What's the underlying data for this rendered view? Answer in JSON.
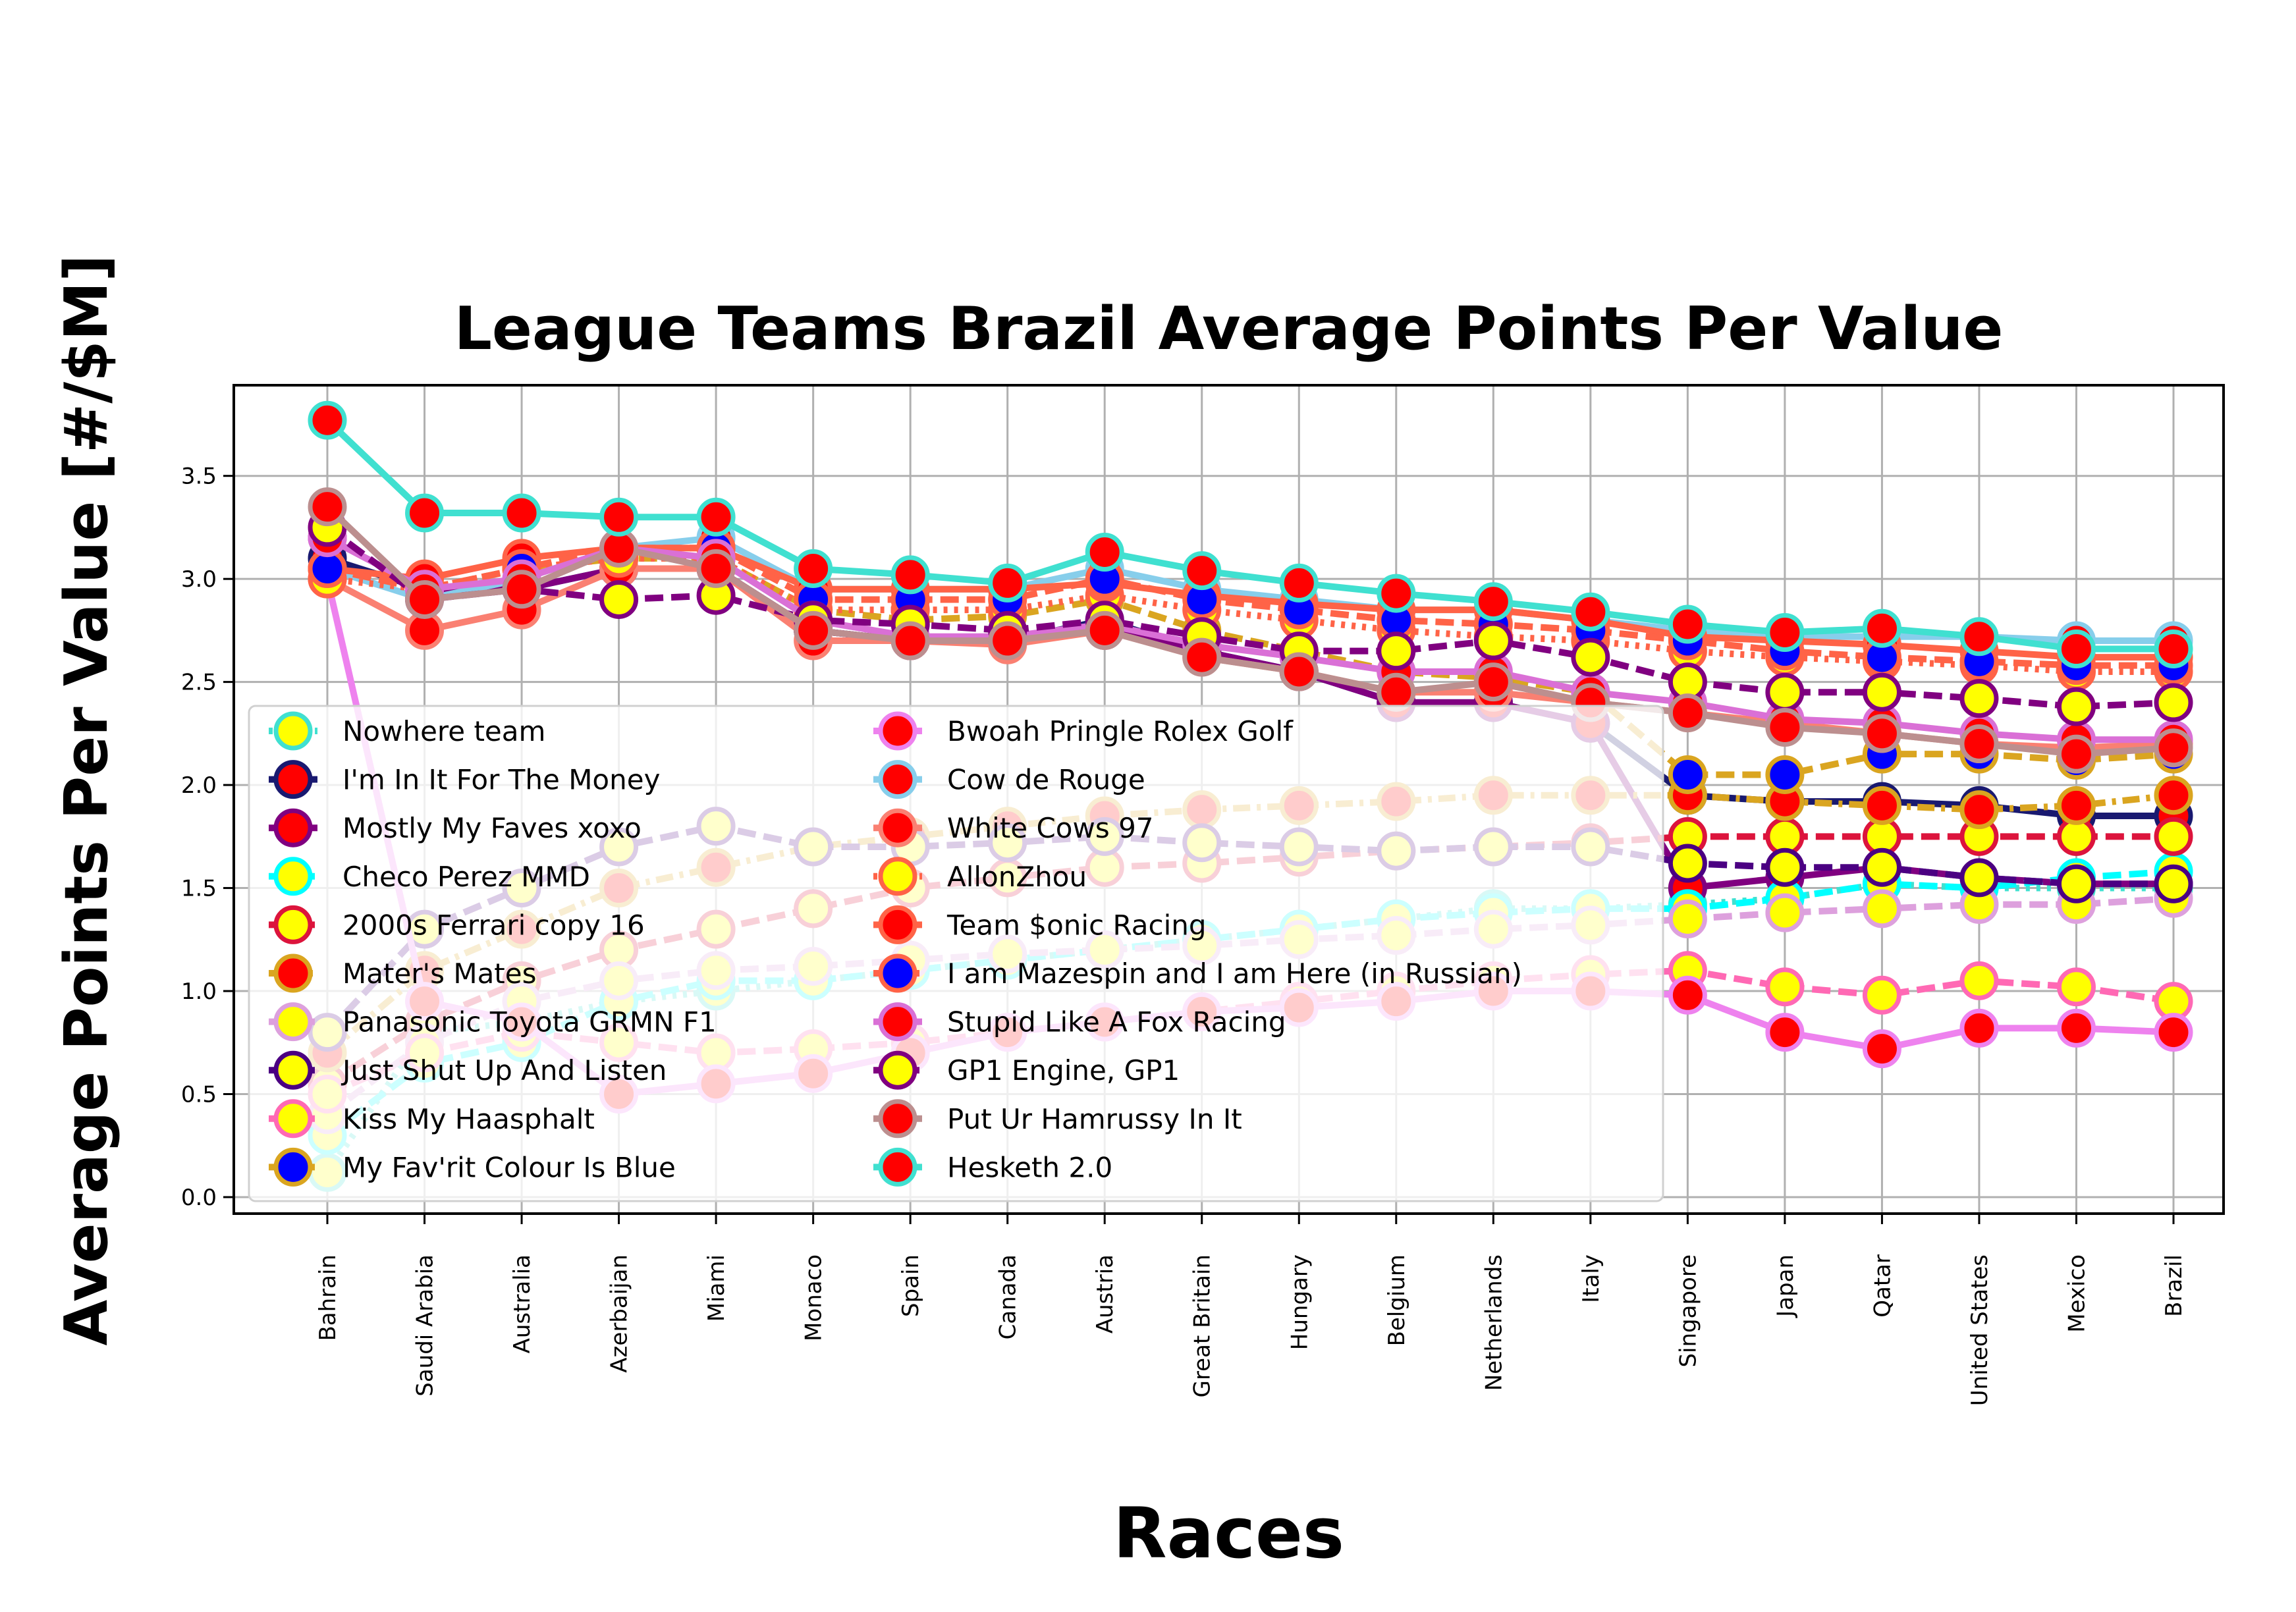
{
  "chart_data": {
    "type": "line",
    "title": "League Teams Brazil Average Points Per Value",
    "xlabel": "Races",
    "ylabel": "Average Points Per Value [#/$M]",
    "ylim": [
      -0.08,
      3.94
    ],
    "yticks": [
      "0.0",
      "0.5",
      "1.0",
      "1.5",
      "2.0",
      "2.5",
      "3.0",
      "3.5"
    ],
    "grid": true,
    "legend_location": "lower-left",
    "legend_columns": 2,
    "categories": [
      "Bahrain",
      "Saudi Arabia",
      "Australia",
      "Azerbaijan",
      "Miami",
      "Monaco",
      "Spain",
      "Canada",
      "Austria",
      "Great Britain",
      "Hungary",
      "Belgium",
      "Netherlands",
      "Italy",
      "Singapore",
      "Japan",
      "Qatar",
      "United States",
      "Mexico",
      "Brazil"
    ],
    "series": [
      {
        "name": "Nowhere team",
        "color": "#40e0d0",
        "marker_face": "#ffff00",
        "dash": "dot",
        "values": [
          0.12,
          0.8,
          0.85,
          0.95,
          1.0,
          1.05,
          1.1,
          1.15,
          1.2,
          1.25,
          1.3,
          1.35,
          1.4,
          1.4,
          1.42,
          1.45,
          1.52,
          1.5,
          1.5,
          1.5
        ]
      },
      {
        "name": "I'm In It For The Money",
        "color": "#191970",
        "marker_face": "#ff0000",
        "dash": "solid",
        "values": [
          3.1,
          2.95,
          2.95,
          3.05,
          3.05,
          2.75,
          2.7,
          2.7,
          2.8,
          2.65,
          2.55,
          2.4,
          2.4,
          2.3,
          1.95,
          1.92,
          1.92,
          1.9,
          1.85,
          1.85
        ]
      },
      {
        "name": "Mostly My Faves xoxo",
        "color": "#800080",
        "marker_face": "#ff0000",
        "dash": "solid",
        "values": [
          3.2,
          2.95,
          2.95,
          3.05,
          3.05,
          2.75,
          2.7,
          2.7,
          2.75,
          2.65,
          2.55,
          2.4,
          2.4,
          2.3,
          1.5,
          1.55,
          1.6,
          1.55,
          1.52,
          1.52
        ]
      },
      {
        "name": "Checo Perez MMD",
        "color": "#00ffff",
        "marker_face": "#ffff00",
        "dash": "dash",
        "values": [
          0.3,
          0.65,
          0.75,
          0.95,
          1.05,
          1.05,
          1.1,
          1.15,
          1.2,
          1.25,
          1.3,
          1.35,
          1.38,
          1.4,
          1.4,
          1.45,
          1.52,
          1.5,
          1.55,
          1.58
        ]
      },
      {
        "name": "2000s Ferrari copy 16",
        "color": "#dc143c",
        "marker_face": "#ffff00",
        "dash": "dash",
        "values": [
          0.55,
          0.85,
          1.05,
          1.2,
          1.3,
          1.4,
          1.5,
          1.55,
          1.6,
          1.62,
          1.65,
          1.68,
          1.7,
          1.72,
          1.75,
          1.75,
          1.75,
          1.75,
          1.75,
          1.75
        ]
      },
      {
        "name": "Mater's Mates",
        "color": "#daa520",
        "marker_face": "#ff0000",
        "dash": "dashdot",
        "values": [
          0.7,
          1.1,
          1.3,
          1.5,
          1.6,
          1.7,
          1.75,
          1.8,
          1.85,
          1.88,
          1.9,
          1.92,
          1.95,
          1.95,
          1.95,
          1.92,
          1.9,
          1.88,
          1.9,
          1.95
        ]
      },
      {
        "name": "Panasonic Toyota GRMN F1",
        "color": "#dda0dd",
        "marker_face": "#ffff00",
        "dash": "dash",
        "values": [
          0.4,
          0.75,
          0.95,
          1.05,
          1.1,
          1.12,
          1.15,
          1.18,
          1.2,
          1.22,
          1.25,
          1.27,
          1.3,
          1.32,
          1.35,
          1.38,
          1.4,
          1.42,
          1.42,
          1.45
        ]
      },
      {
        "name": "Just Shut Up And Listen",
        "color": "#4b0082",
        "marker_face": "#ffff00",
        "dash": "dash",
        "values": [
          0.8,
          1.3,
          1.5,
          1.7,
          1.8,
          1.7,
          1.7,
          1.72,
          1.75,
          1.72,
          1.7,
          1.68,
          1.7,
          1.7,
          1.62,
          1.6,
          1.6,
          1.55,
          1.52,
          1.52
        ]
      },
      {
        "name": "Kiss My Haasphalt",
        "color": "#ff69b4",
        "marker_face": "#ffff00",
        "dash": "dash",
        "values": [
          0.5,
          0.7,
          0.8,
          0.75,
          0.7,
          0.72,
          0.75,
          0.8,
          0.85,
          0.9,
          0.95,
          1.0,
          1.05,
          1.08,
          1.1,
          1.02,
          0.98,
          1.05,
          1.02,
          0.95
        ]
      },
      {
        "name": "My Fav'rit Colour Is Blue",
        "color": "#daa520",
        "marker_face": "#0000ff",
        "dash": "dash",
        "values": [
          3.05,
          2.95,
          3.05,
          3.1,
          3.1,
          2.85,
          2.8,
          2.82,
          2.9,
          2.75,
          2.65,
          2.55,
          2.52,
          2.45,
          2.05,
          2.05,
          2.15,
          2.15,
          2.12,
          2.15
        ]
      },
      {
        "name": "Bwoah Pringle Rolex Golf",
        "color": "#ee82ee",
        "marker_face": "#ff0000",
        "dash": "solid",
        "values": [
          3.0,
          0.95,
          0.85,
          0.5,
          0.55,
          0.6,
          0.7,
          0.8,
          0.85,
          0.9,
          0.92,
          0.95,
          1.0,
          1.0,
          0.98,
          0.8,
          0.72,
          0.82,
          0.82,
          0.8
        ]
      },
      {
        "name": "Cow de Rouge",
        "color": "#87ceeb",
        "marker_face": "#ff0000",
        "dash": "solid",
        "values": [
          3.05,
          2.9,
          3.0,
          3.15,
          3.2,
          2.95,
          2.95,
          2.95,
          3.05,
          2.95,
          2.9,
          2.85,
          2.85,
          2.8,
          2.75,
          2.72,
          2.72,
          2.72,
          2.7,
          2.7
        ]
      },
      {
        "name": "White Cows 97",
        "color": "#fa8072",
        "marker_face": "#ff0000",
        "dash": "solid",
        "values": [
          3.0,
          2.75,
          2.85,
          3.05,
          3.05,
          2.7,
          2.7,
          2.68,
          2.75,
          2.62,
          2.55,
          2.45,
          2.45,
          2.4,
          2.35,
          2.3,
          2.25,
          2.2,
          2.18,
          2.2
        ]
      },
      {
        "name": "AllonZhou",
        "color": "#ff6347",
        "marker_face": "#ffff00",
        "dash": "dot",
        "values": [
          3.0,
          2.95,
          3.05,
          3.1,
          3.1,
          2.85,
          2.85,
          2.85,
          2.92,
          2.85,
          2.8,
          2.75,
          2.72,
          2.7,
          2.65,
          2.62,
          2.6,
          2.58,
          2.55,
          2.55
        ]
      },
      {
        "name": "Team $onic Racing",
        "color": "#ff6347",
        "marker_face": "#ff0000",
        "dash": "solid",
        "values": [
          3.05,
          3.0,
          3.1,
          3.15,
          3.15,
          2.95,
          2.95,
          2.95,
          2.98,
          2.92,
          2.88,
          2.85,
          2.85,
          2.8,
          2.72,
          2.7,
          2.68,
          2.65,
          2.62,
          2.62
        ]
      },
      {
        "name": "I am Mazespin and I am Here (in Russian)",
        "color": "#ff6347",
        "marker_face": "#0000ff",
        "dash": "dash",
        "values": [
          3.05,
          2.95,
          3.05,
          3.15,
          3.15,
          2.9,
          2.9,
          2.9,
          3.0,
          2.9,
          2.85,
          2.8,
          2.78,
          2.75,
          2.7,
          2.65,
          2.62,
          2.6,
          2.58,
          2.58
        ]
      },
      {
        "name": "Stupid Like A Fox Racing",
        "color": "#da70d6",
        "marker_face": "#ff0000",
        "dash": "solid",
        "values": [
          3.2,
          2.95,
          3.0,
          3.15,
          3.1,
          2.8,
          2.72,
          2.72,
          2.78,
          2.68,
          2.62,
          2.55,
          2.55,
          2.45,
          2.4,
          2.32,
          2.3,
          2.25,
          2.22,
          2.22
        ]
      },
      {
        "name": "GP1 Engine, GP1",
        "color": "#800080",
        "marker_face": "#ffff00",
        "dash": "dash",
        "values": [
          3.25,
          2.9,
          2.95,
          2.9,
          2.92,
          2.8,
          2.78,
          2.75,
          2.8,
          2.72,
          2.65,
          2.65,
          2.7,
          2.62,
          2.5,
          2.45,
          2.45,
          2.42,
          2.38,
          2.4
        ]
      },
      {
        "name": "Put Ur Hamrussy In It",
        "color": "#bc8f8f",
        "marker_face": "#ff0000",
        "dash": "solid",
        "values": [
          3.35,
          2.9,
          2.95,
          3.15,
          3.05,
          2.75,
          2.7,
          2.7,
          2.75,
          2.62,
          2.55,
          2.45,
          2.5,
          2.4,
          2.35,
          2.28,
          2.25,
          2.2,
          2.15,
          2.18
        ]
      },
      {
        "name": "Hesketh 2.0",
        "color": "#40e0d0",
        "marker_face": "#ff0000",
        "dash": "solid",
        "values": [
          3.77,
          3.32,
          3.32,
          3.3,
          3.3,
          3.05,
          3.02,
          2.98,
          3.13,
          3.04,
          2.98,
          2.93,
          2.89,
          2.84,
          2.78,
          2.74,
          2.76,
          2.72,
          2.66,
          2.66
        ]
      }
    ]
  }
}
